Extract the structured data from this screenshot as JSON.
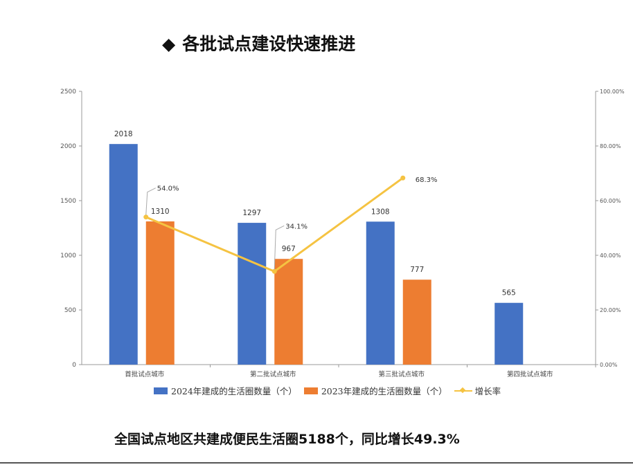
{
  "heading": {
    "bullet": "◆",
    "text": "各批试点建设快速推进"
  },
  "caption": "全国试点地区共建成便民生活圈5188个，同比增长49.3%",
  "chart_data": {
    "type": "bar",
    "categories": [
      "首批试点城市",
      "第二批试点城市",
      "第三批试点城市",
      "第四批试点城市"
    ],
    "series": [
      {
        "name": "2024年建成的生活圈数量（个）",
        "kind": "bar",
        "color": "#4472C4",
        "values": [
          2018,
          1297,
          1308,
          565
        ],
        "labels": [
          "2018",
          "1297",
          "1308",
          "565"
        ]
      },
      {
        "name": "2023年建成的生活圈数量（个）",
        "kind": "bar",
        "color": "#ED7D31",
        "values": [
          1310,
          967,
          777,
          null
        ],
        "labels": [
          "1310",
          "967",
          "777",
          ""
        ]
      },
      {
        "name": "增长率",
        "kind": "line",
        "axis": "right",
        "color": "#F5C342",
        "values": [
          54.0,
          34.1,
          68.3,
          null
        ],
        "labels": [
          "54.0%",
          "34.1%",
          "68.3%",
          ""
        ]
      }
    ],
    "y_left": {
      "min": 0,
      "max": 2500,
      "ticks": [
        "0",
        "500",
        "1000",
        "1500",
        "2000",
        "2500"
      ]
    },
    "y_right": {
      "min": 0,
      "max": 100,
      "ticks": [
        "0.00%",
        "20.00%",
        "40.00%",
        "60.00%",
        "80.00%",
        "100.00%"
      ]
    },
    "legend_position": "bottom",
    "grid": false
  }
}
